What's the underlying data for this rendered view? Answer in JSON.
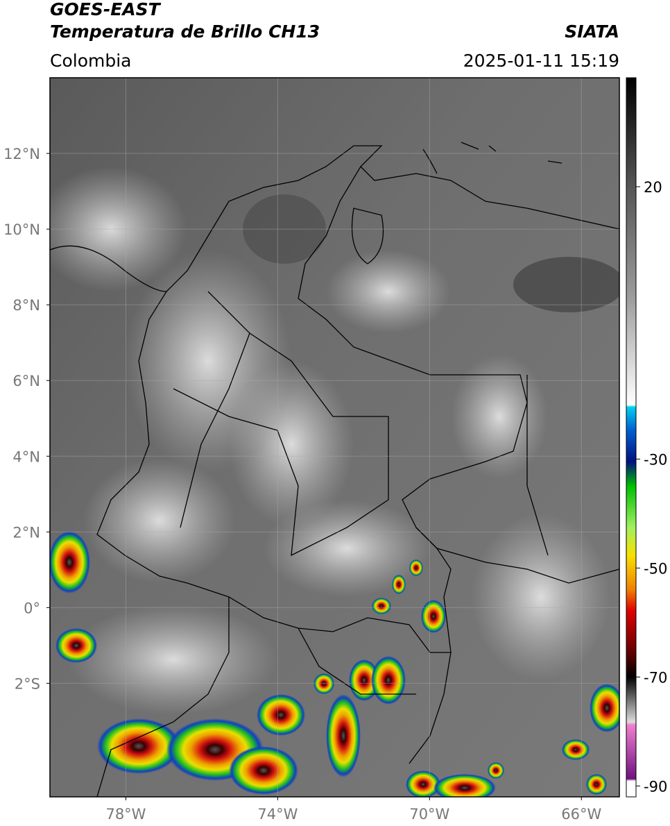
{
  "header": {
    "satellite": "GOES-EAST",
    "product": "Temperatura de Brillo CH13",
    "source": "SIATA",
    "region": "Colombia",
    "datetime": "2025-01-11 15:19"
  },
  "map": {
    "xlim": [
      -80,
      -65
    ],
    "ylim": [
      -5,
      14
    ],
    "xticks": [
      {
        "value": -78,
        "label": "78°W"
      },
      {
        "value": -74,
        "label": "74°W"
      },
      {
        "value": -70,
        "label": "70°W"
      },
      {
        "value": -66,
        "label": "66°W"
      }
    ],
    "yticks": [
      {
        "value": 12,
        "label": "12°N"
      },
      {
        "value": 10,
        "label": "10°N"
      },
      {
        "value": 8,
        "label": "8°N"
      },
      {
        "value": 6,
        "label": "6°N"
      },
      {
        "value": 4,
        "label": "4°N"
      },
      {
        "value": 2,
        "label": "2°N"
      },
      {
        "value": 0,
        "label": "0°"
      },
      {
        "value": -2,
        "label": "2°S"
      }
    ]
  },
  "colorbar": {
    "lim": [
      -92,
      40
    ],
    "ticks": [
      20,
      -30,
      -50,
      -70,
      -90
    ]
  }
}
